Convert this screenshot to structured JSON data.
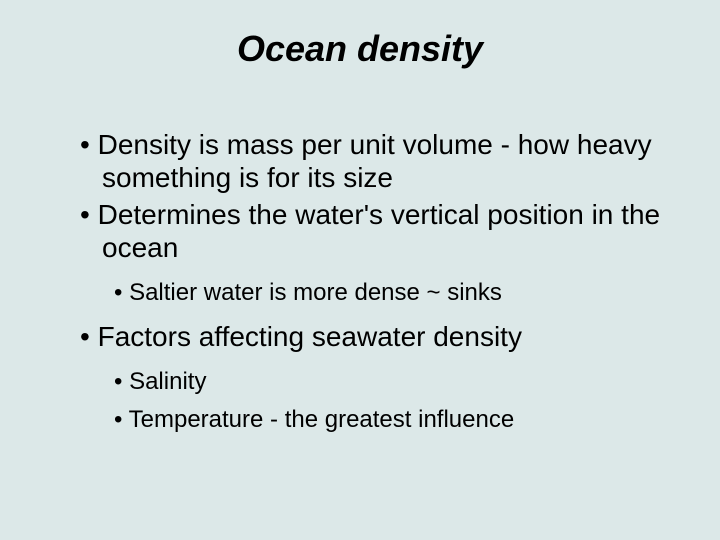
{
  "slide": {
    "background_color": "#dce8e8",
    "text_color": "#000000",
    "font_family": "Arial",
    "title": {
      "text": "Ocean density",
      "fontsize": 36,
      "bold": true,
      "italic": true,
      "align": "center"
    },
    "bullets": [
      {
        "level": 1,
        "text": "Density is mass per unit volume  - how heavy something is for its size",
        "fontsize": 28
      },
      {
        "level": 1,
        "text": "Determines the water's vertical position in the ocean",
        "fontsize": 28
      },
      {
        "level": 2,
        "text": "Saltier water is more dense ~ sinks",
        "fontsize": 24
      },
      {
        "level": 1,
        "text": "Factors affecting seawater density",
        "fontsize": 28
      },
      {
        "level": 2,
        "text": "Salinity",
        "fontsize": 24
      },
      {
        "level": 2,
        "text": "Temperature - the greatest influence",
        "fontsize": 24
      }
    ]
  }
}
